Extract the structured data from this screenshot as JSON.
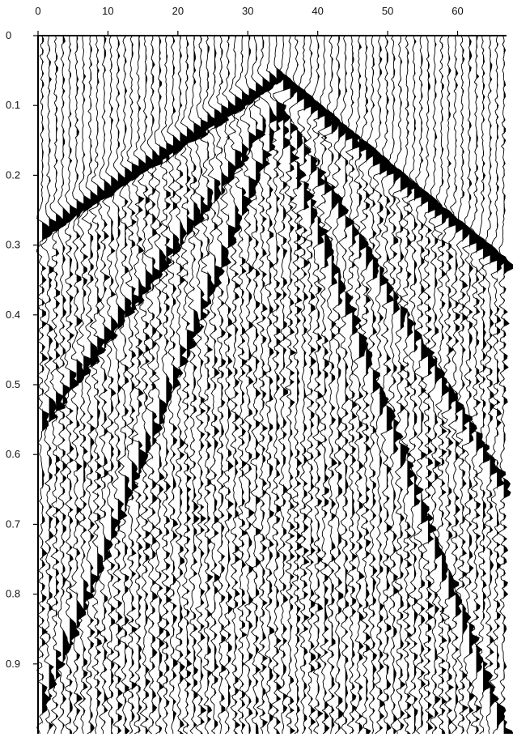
{
  "chart_data": {
    "type": "wiggle-trace seismogram",
    "title": "",
    "xlabel": "",
    "ylabel": "",
    "x_axis_position": "top",
    "xlim": [
      0,
      67
    ],
    "ylim": [
      0,
      1.0
    ],
    "x_ticks": [
      0,
      10,
      20,
      30,
      40,
      50,
      60
    ],
    "x_tick_labels": [
      "0",
      "10",
      "20",
      "30",
      "40",
      "50",
      "60"
    ],
    "y_ticks": [
      0,
      0.1,
      0.2,
      0.3,
      0.4,
      0.5,
      0.6,
      0.7,
      0.8,
      0.9
    ],
    "y_tick_labels": [
      "0",
      "0.1",
      "0.2",
      "0.3",
      "0.4",
      "0.5",
      "0.6",
      "0.7",
      "0.8",
      "0.9"
    ],
    "trace_count": 68,
    "source_trace": 34,
    "fill": "positive lobes filled black (variable area wiggle)",
    "events": [
      {
        "name": "first-arrival",
        "apex_time": 0.06,
        "left_time_at_trace_0": 0.28,
        "right_time_at_trace_67": 0.33
      },
      {
        "name": "refraction-branch",
        "apex_time": 0.1,
        "left_time_at_trace_0": 0.55,
        "right_time_at_trace_67": 0.65
      },
      {
        "name": "surface-wave",
        "apex_time": 0.12,
        "left_time_at_trace_0": 0.95,
        "right_time_at_trace_67": 1.0
      }
    ],
    "grid": false,
    "legend": "none",
    "colors": {
      "trace": "#000000",
      "fill": "#000000",
      "background": "#ffffff"
    }
  }
}
